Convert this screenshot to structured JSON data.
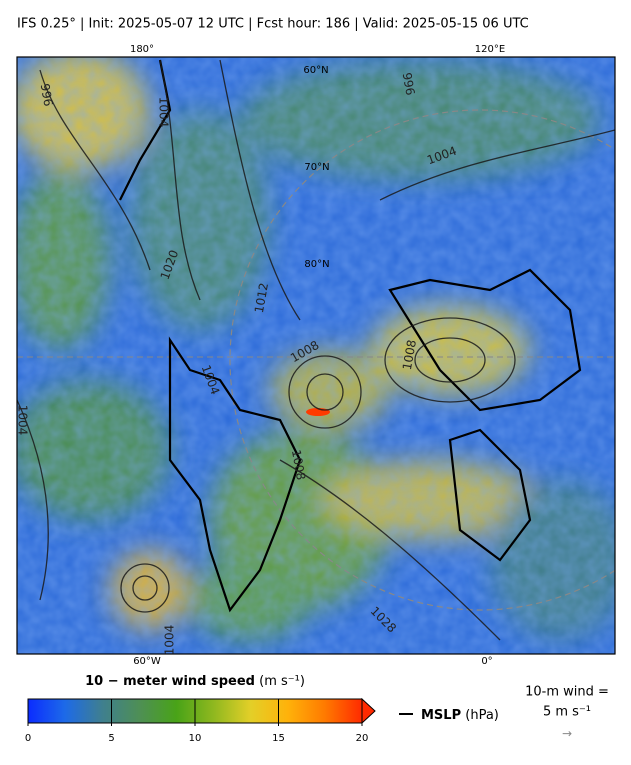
{
  "header": {
    "title": "IFS 0.25°  |  Init: 2025-05-07 12 UTC  |  Fcst hour: 186  |  Valid: 2025-05-15 06 UTC"
  },
  "map": {
    "lon_labels": [
      "180°",
      "120°E",
      "60°W",
      "0°"
    ],
    "lat_labels": [
      "60°N",
      "70°N",
      "80°N"
    ],
    "contour_labels": [
      "996",
      "1004",
      "996",
      "1004",
      "1020",
      "1012",
      "1008",
      "1004",
      "1008",
      "1008",
      "1028",
      "1004",
      "1004"
    ]
  },
  "colorbar": {
    "title": "10 − meter wind speed",
    "unit": "(m s⁻¹)",
    "range": [
      0,
      20
    ],
    "ticks": [
      0,
      5,
      10,
      15,
      20
    ],
    "colors": [
      "#0b2cff",
      "#1d6ae8",
      "#3f7f8f",
      "#4e8f55",
      "#49a318",
      "#8fb81f",
      "#e3cf28",
      "#ffb20a",
      "#ff7a00",
      "#ff2a00"
    ]
  },
  "legend": {
    "mslp_name": "MSLP",
    "mslp_unit": "(hPa)",
    "wind_label": "10-m wind =",
    "wind_value": "5 m s⁻¹",
    "arrow": "→"
  }
}
